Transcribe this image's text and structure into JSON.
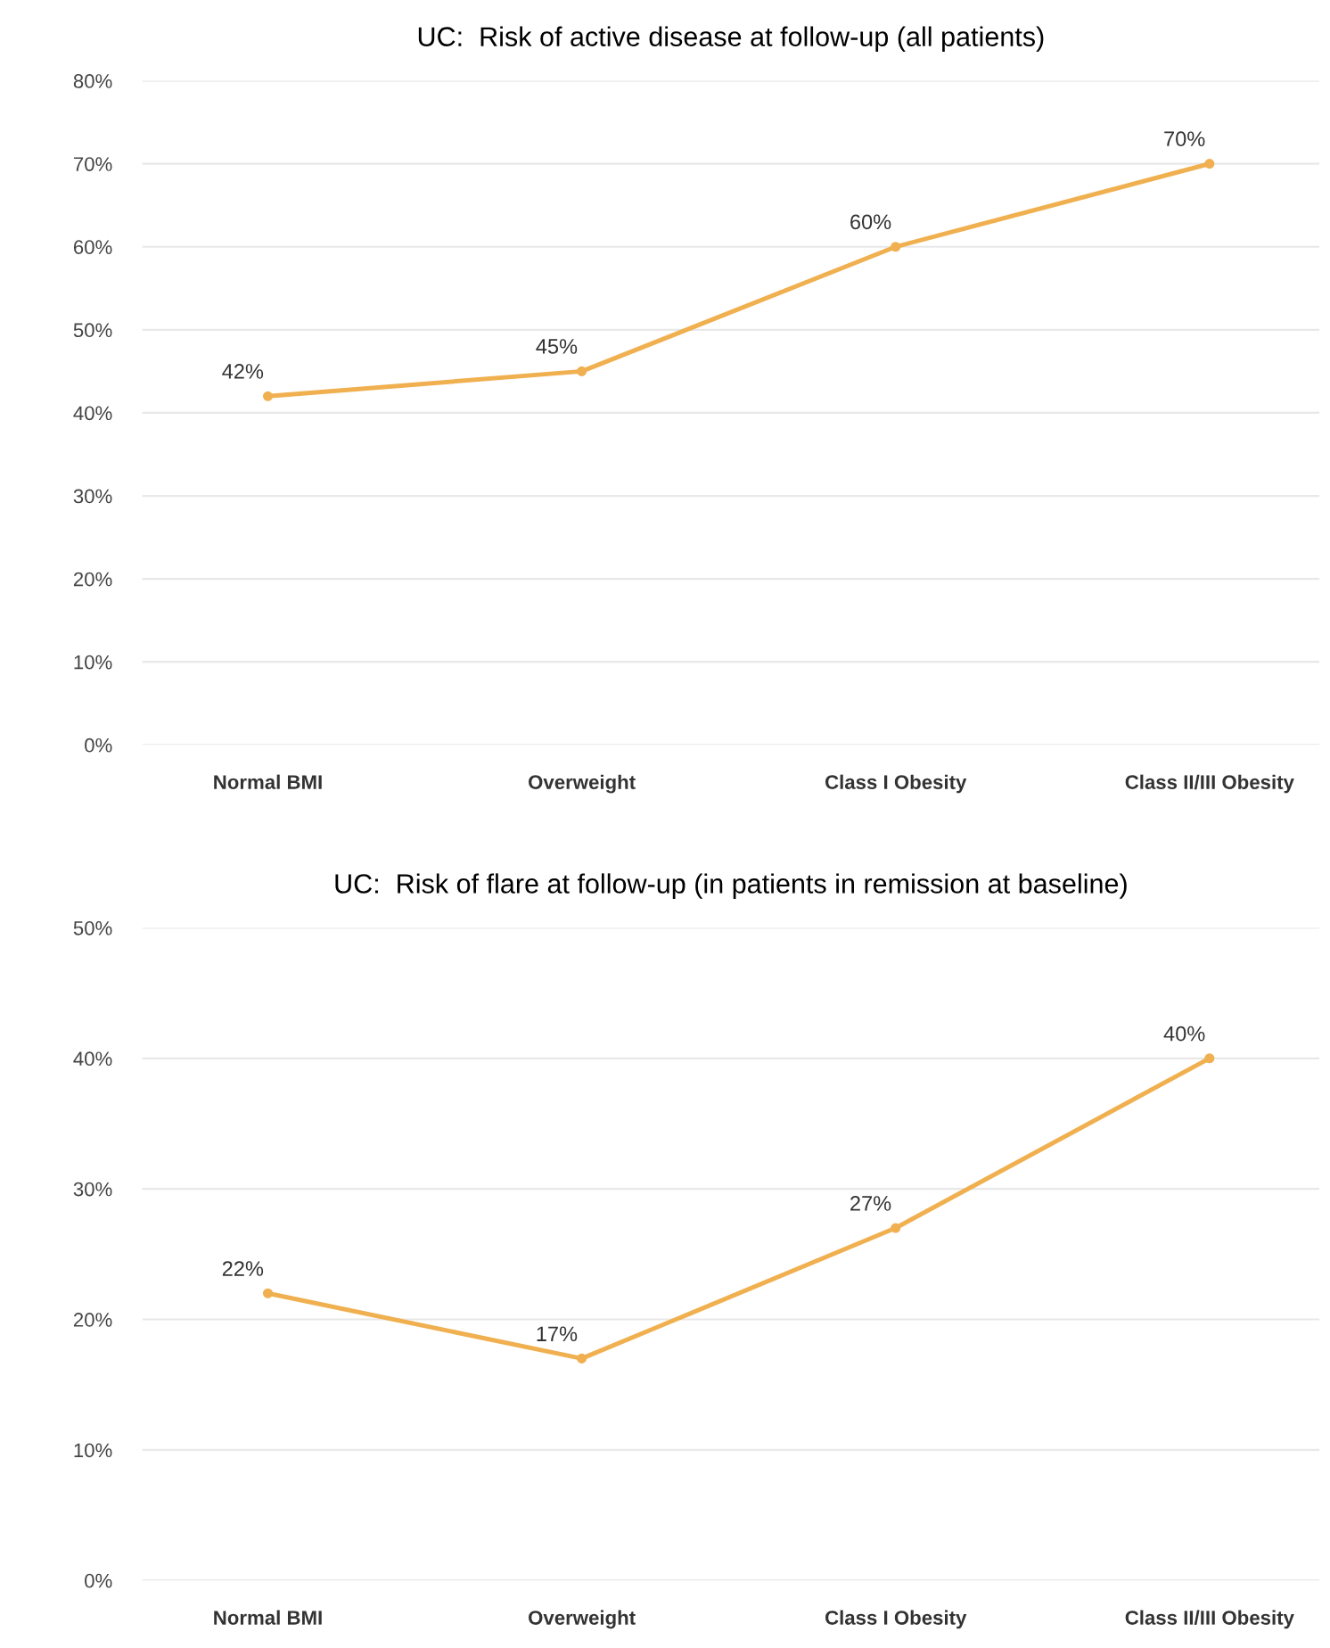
{
  "chart_data": [
    {
      "type": "line",
      "title": "UC:  Risk of active disease at follow-up (all patients)",
      "categories": [
        "Normal BMI",
        "Overweight",
        "Class I Obesity",
        "Class II/III Obesity"
      ],
      "series": [
        {
          "color": "#f0b050",
          "values": [
            42,
            45,
            60,
            70
          ],
          "value_labels": [
            "42%",
            "45%",
            "60%",
            "70%"
          ]
        }
      ],
      "ylim": [
        0,
        80
      ],
      "yticks": [
        {
          "value": 0,
          "label": "0%"
        },
        {
          "value": 10,
          "label": "10%"
        },
        {
          "value": 20,
          "label": "20%"
        },
        {
          "value": 30,
          "label": "30%"
        },
        {
          "value": 40,
          "label": "40%"
        },
        {
          "value": 50,
          "label": "50%"
        },
        {
          "value": 60,
          "label": "60%"
        },
        {
          "value": 70,
          "label": "70%"
        },
        {
          "value": 80,
          "label": "80%"
        }
      ],
      "grid": "y",
      "marker": "circle",
      "line_style": "solid"
    },
    {
      "type": "line",
      "title": "UC:  Risk of flare at follow-up (in patients in remission at baseline)",
      "categories": [
        "Normal BMI",
        "Overweight",
        "Class I Obesity",
        "Class II/III Obesity"
      ],
      "series": [
        {
          "color": "#f0b050",
          "values": [
            22,
            17,
            27,
            40
          ],
          "value_labels": [
            "22%",
            "17%",
            "27%",
            "40%"
          ]
        }
      ],
      "ylim": [
        0,
        50
      ],
      "yticks": [
        {
          "value": 0,
          "label": "0%"
        },
        {
          "value": 10,
          "label": "10%"
        },
        {
          "value": 20,
          "label": "20%"
        },
        {
          "value": 30,
          "label": "30%"
        },
        {
          "value": 40,
          "label": "40%"
        },
        {
          "value": 50,
          "label": "50%"
        }
      ],
      "grid": "y",
      "marker": "circle",
      "line_style": "solid"
    }
  ]
}
